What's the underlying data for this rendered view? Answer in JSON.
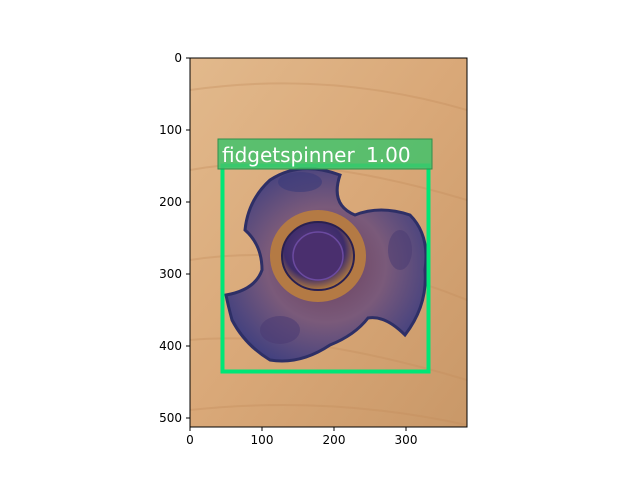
{
  "detection": {
    "label": "fidgetspinner",
    "score": "1.00",
    "box_color": "#00e676",
    "label_bg_color": "#43c26b"
  },
  "axes": {
    "x_ticks": [
      "0",
      "100",
      "200",
      "300"
    ],
    "y_ticks": [
      "0",
      "100",
      "200",
      "300",
      "400",
      "500"
    ],
    "x_range": [
      0,
      384
    ],
    "y_range": [
      512,
      0
    ]
  },
  "image": {
    "wood_color": "#d9a878",
    "spinner_colors": [
      "#3b3f86",
      "#6b4a78",
      "#b8783e",
      "#4a3a6a"
    ]
  }
}
